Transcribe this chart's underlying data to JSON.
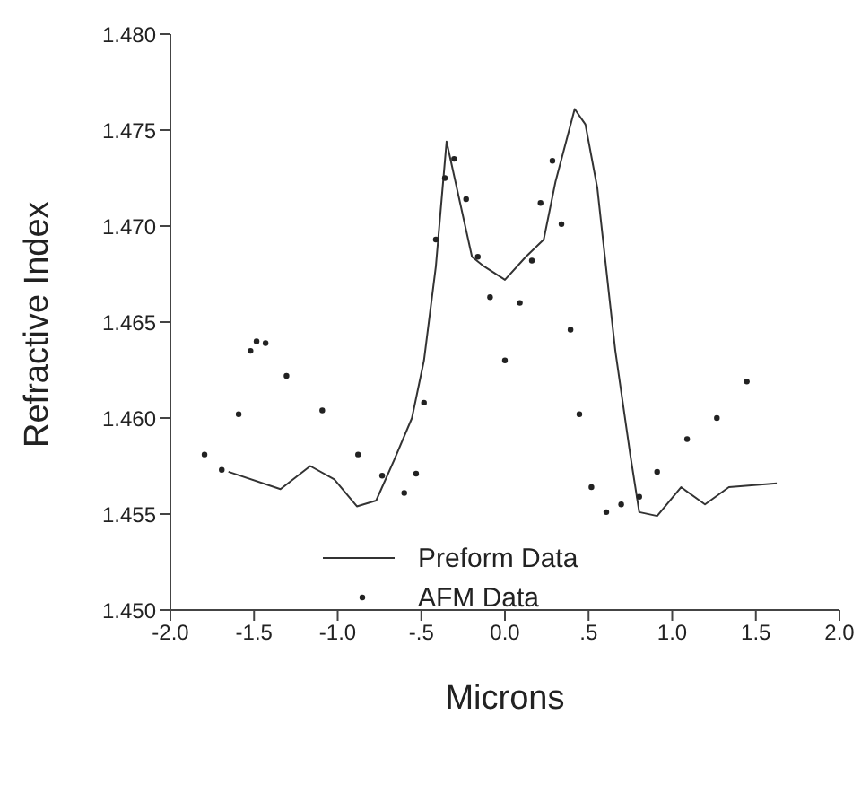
{
  "chart_data": {
    "type": "line",
    "xlabel": "Microns",
    "ylabel": "Refractive Index",
    "xlim": [
      -2.0,
      2.0
    ],
    "xticks": [
      {
        "value": -2.0,
        "label": "-2.0"
      },
      {
        "value": -1.5,
        "label": "-1.5"
      },
      {
        "value": -1.0,
        "label": "-1.0"
      },
      {
        "value": -0.5,
        "label": "-.5"
      },
      {
        "value": 0,
        "label": "0.0"
      },
      {
        "value": 0.5,
        "label": ".5"
      },
      {
        "value": 1.0,
        "label": "1.0"
      },
      {
        "value": 1.5,
        "label": "1.5"
      },
      {
        "value": 2.0,
        "label": "2.0"
      }
    ],
    "ylim": [
      1.45,
      1.48
    ],
    "yticks": [
      {
        "value": 1.45,
        "label": "1.450"
      },
      {
        "value": 1.455,
        "label": "1.455"
      },
      {
        "value": 1.46,
        "label": "1.460"
      },
      {
        "value": 1.465,
        "label": "1.465"
      },
      {
        "value": 1.47,
        "label": "1.470"
      },
      {
        "value": 1.475,
        "label": "1.475"
      },
      {
        "value": 1.48,
        "label": "1.480"
      }
    ],
    "grid": false,
    "legend": "bottom",
    "series": [
      {
        "name": "Preform Data",
        "color": "#333333",
        "line_style": "solid",
        "marker": "none",
        "x": [
          -1.653,
          -1.342,
          -1.164,
          -1.02,
          -0.885,
          -0.77,
          -0.663,
          -0.556,
          -0.484,
          -0.413,
          -0.349,
          -0.268,
          -0.197,
          -0.125,
          0.0,
          0.125,
          0.232,
          0.302,
          0.417,
          0.481,
          0.552,
          0.624,
          0.66,
          0.749,
          0.803,
          0.91,
          1.053,
          1.196,
          1.339,
          1.625
        ],
        "values": [
          1.4572,
          1.4563,
          1.4575,
          1.4568,
          1.4554,
          1.4557,
          1.4578,
          1.46,
          1.463,
          1.4679,
          1.4744,
          1.4712,
          1.4684,
          1.4679,
          1.4672,
          1.4684,
          1.4693,
          1.4723,
          1.4761,
          1.4753,
          1.472,
          1.4663,
          1.4635,
          1.4581,
          1.4551,
          1.4549,
          1.4564,
          1.4555,
          1.4564,
          1.4566
        ]
      },
      {
        "name": "AFM Data",
        "type": "scatter",
        "color": "#222222",
        "marker": "circle",
        "x": [
          -1.796,
          -1.693,
          -1.592,
          -1.521,
          -1.485,
          -1.431,
          -1.306,
          -1.092,
          -0.878,
          -0.734,
          -0.602,
          -0.531,
          -0.484,
          -0.413,
          -0.359,
          -0.304,
          -0.232,
          -0.162,
          -0.089,
          0.0,
          0.089,
          0.161,
          0.213,
          0.284,
          0.338,
          0.392,
          0.445,
          0.517,
          0.606,
          0.695,
          0.803,
          0.91,
          1.089,
          1.267,
          1.446
        ],
        "values": [
          1.4581,
          1.4573,
          1.4602,
          1.4635,
          1.464,
          1.4639,
          1.4622,
          1.4604,
          1.4581,
          1.457,
          1.4561,
          1.4571,
          1.4608,
          1.4693,
          1.4725,
          1.4735,
          1.4714,
          1.4684,
          1.4663,
          1.463,
          1.466,
          1.4682,
          1.4712,
          1.4734,
          1.4701,
          1.4646,
          1.4602,
          1.4564,
          1.4551,
          1.4555,
          1.4559,
          1.4572,
          1.4589,
          1.46,
          1.4619
        ]
      }
    ]
  }
}
